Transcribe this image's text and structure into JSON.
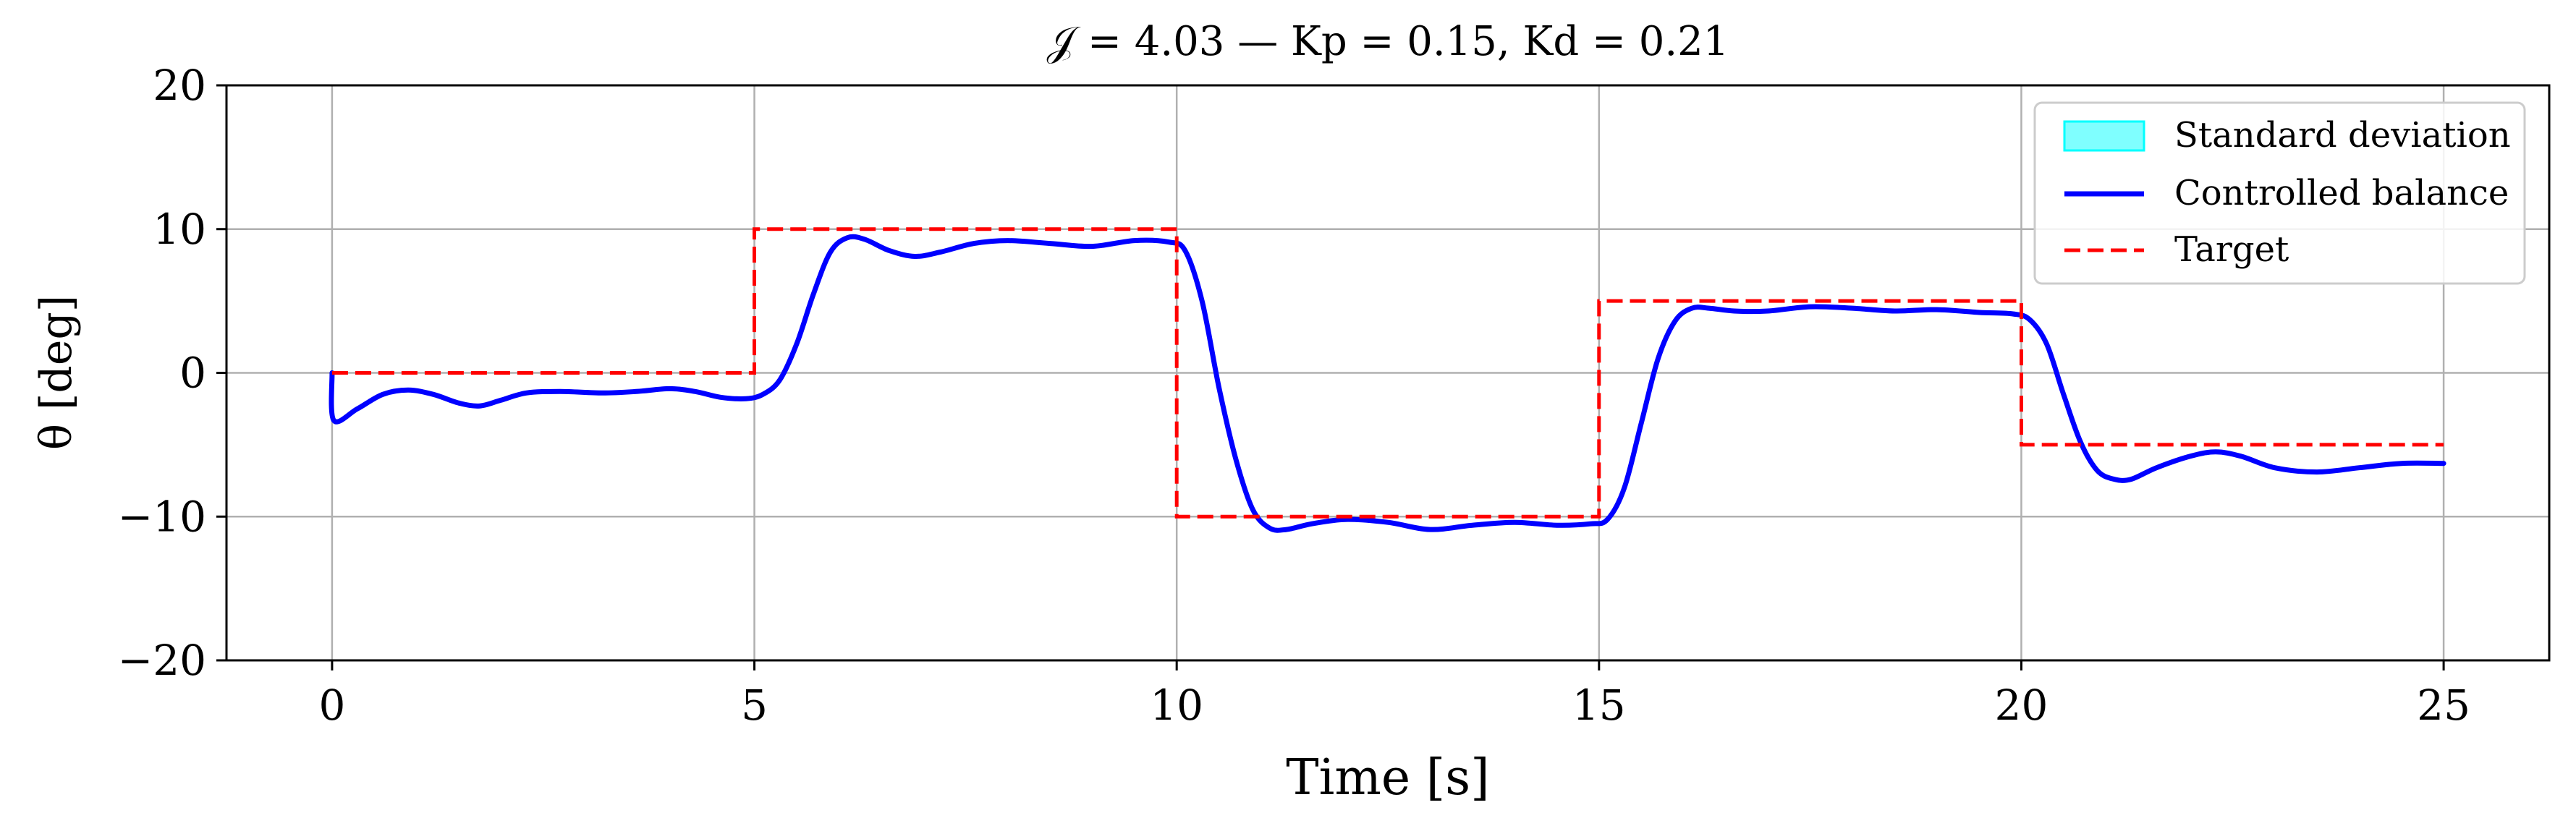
{
  "chart_data": {
    "type": "line",
    "title": "𝒥 = 4.03 — Kp = 0.15, Kd = 0.21",
    "xlabel": "Time [s]",
    "ylabel": "θ [deg]",
    "xlim": [
      -1.25,
      26.25
    ],
    "ylim": [
      -20,
      20
    ],
    "xticks": [
      0,
      5,
      10,
      15,
      20,
      25
    ],
    "yticks": [
      -20,
      -10,
      0,
      10,
      20
    ],
    "xtick_labels": [
      "0",
      "5",
      "10",
      "15",
      "20",
      "25"
    ],
    "ytick_labels": [
      "−20",
      "−10",
      "0",
      "10",
      "20"
    ],
    "grid": true,
    "legend_position": "top-right",
    "legend": [
      {
        "label": "Standard deviation",
        "style": "patch",
        "color": "#00ffff"
      },
      {
        "label": "Controlled balance",
        "style": "solid",
        "color": "#0000ff"
      },
      {
        "label": "Target",
        "style": "dashed",
        "color": "#ff0000"
      }
    ],
    "series": [
      {
        "name": "Target",
        "color": "#ff0000",
        "dash": true,
        "x": [
          0,
          5,
          5,
          10,
          10,
          15,
          15,
          20,
          20,
          25
        ],
        "y": [
          0,
          0,
          10,
          10,
          -10,
          -10,
          5,
          5,
          -5,
          -5
        ]
      },
      {
        "name": "Controlled balance",
        "color": "#0000ff",
        "dash": false,
        "x": [
          0,
          0.02,
          0.3,
          0.6,
          0.9,
          1.2,
          1.5,
          1.75,
          2.0,
          2.3,
          2.7,
          3.2,
          3.6,
          4.0,
          4.3,
          4.6,
          4.9,
          5.1,
          5.3,
          5.5,
          5.7,
          5.9,
          6.1,
          6.3,
          6.6,
          6.9,
          7.2,
          7.6,
          8.0,
          8.5,
          9.0,
          9.5,
          9.9,
          10.1,
          10.3,
          10.5,
          10.7,
          10.9,
          11.1,
          11.3,
          11.6,
          12.0,
          12.5,
          13.0,
          13.5,
          14.0,
          14.5,
          14.9,
          15.1,
          15.3,
          15.5,
          15.7,
          15.9,
          16.1,
          16.3,
          16.6,
          17.0,
          17.5,
          18.0,
          18.5,
          19.0,
          19.5,
          19.9,
          20.1,
          20.3,
          20.5,
          20.7,
          20.9,
          21.1,
          21.3,
          21.6,
          22.0,
          22.3,
          22.6,
          23.0,
          23.5,
          24.0,
          24.5,
          25.0
        ],
        "y": [
          0,
          -3.3,
          -2.5,
          -1.5,
          -1.2,
          -1.5,
          -2.1,
          -2.3,
          -1.9,
          -1.4,
          -1.3,
          -1.4,
          -1.3,
          -1.1,
          -1.3,
          -1.7,
          -1.8,
          -1.5,
          -0.5,
          2.0,
          5.5,
          8.4,
          9.4,
          9.3,
          8.5,
          8.1,
          8.4,
          9.0,
          9.2,
          9.0,
          8.8,
          9.2,
          9.1,
          8.5,
          5.0,
          -1.0,
          -6.0,
          -9.5,
          -10.8,
          -10.9,
          -10.5,
          -10.2,
          -10.4,
          -10.9,
          -10.6,
          -10.4,
          -10.6,
          -10.5,
          -10.2,
          -8.0,
          -3.5,
          1.0,
          3.6,
          4.5,
          4.5,
          4.3,
          4.3,
          4.6,
          4.5,
          4.3,
          4.4,
          4.2,
          4.1,
          3.7,
          2.0,
          -1.5,
          -4.8,
          -6.8,
          -7.4,
          -7.4,
          -6.6,
          -5.8,
          -5.5,
          -5.8,
          -6.6,
          -6.9,
          -6.6,
          -6.3,
          -6.3
        ]
      }
    ]
  }
}
